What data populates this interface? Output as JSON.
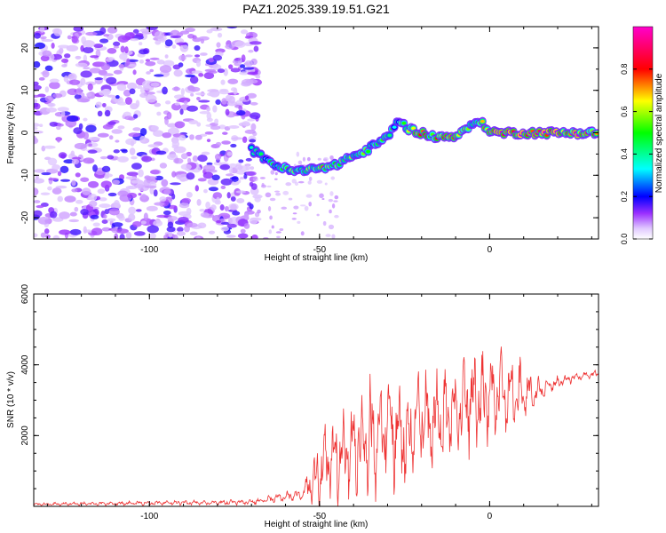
{
  "title": "PAZ1.2025.339.19.51.G21",
  "chart_data": [
    {
      "type": "heatmap",
      "xlabel": "Height of straight line (km)",
      "ylabel": "Frequency (Hz)",
      "xlim": [
        -134,
        32
      ],
      "ylim": [
        -25,
        25
      ],
      "xticks": [
        -100,
        -50,
        0
      ],
      "xtick_labels": [
        "-100",
        "-50",
        "0"
      ],
      "yticks": [
        20,
        10,
        0,
        -10,
        -20
      ],
      "ytick_labels": [
        "20",
        "10",
        "0",
        "-10",
        "-20"
      ],
      "colorbar": {
        "label": "Normalized spectral amplitude",
        "range": [
          0,
          1
        ],
        "ticks": [
          0.0,
          0.2,
          0.4,
          0.6,
          0.8
        ],
        "tick_labels": [
          "0.0",
          "0.2",
          "0.4",
          "0.6",
          "0.8"
        ]
      },
      "noise_region": {
        "x_range": [
          -134,
          -68
        ],
        "y_range": [
          -25,
          25
        ],
        "level": 0.1
      },
      "ridge": {
        "x": [
          -70,
          -66,
          -62,
          -58,
          -54,
          -50,
          -46,
          -42,
          -38,
          -34,
          -30,
          -27,
          -24,
          -20,
          -16,
          -12,
          -8,
          -5,
          -3,
          -1,
          2,
          6,
          10,
          14,
          18,
          22,
          26,
          30,
          32
        ],
        "frequency": [
          -4,
          -6,
          -8,
          -9,
          -9,
          -8,
          -8,
          -6,
          -5,
          -3,
          -1,
          3,
          1,
          0,
          -1,
          -1,
          0,
          2,
          3,
          1,
          0,
          0,
          0,
          0,
          0,
          0,
          0,
          0,
          0
        ],
        "amplitude": [
          0.35,
          0.45,
          0.5,
          0.55,
          0.6,
          0.65,
          0.6,
          0.55,
          0.55,
          0.5,
          0.5,
          0.45,
          0.6,
          0.7,
          0.75,
          0.8,
          0.7,
          0.6,
          0.6,
          0.75,
          0.9,
          0.95,
          0.9,
          0.85,
          0.9,
          0.9,
          0.85,
          0.8,
          0.75
        ]
      }
    },
    {
      "type": "line",
      "xlabel": "Height of straight line (km)",
      "ylabel": "SNR (10 * v/v)",
      "xlim": [
        -134,
        32
      ],
      "ylim": [
        0,
        6000
      ],
      "xticks": [
        -100,
        -50,
        0
      ],
      "xtick_labels": [
        "-100",
        "-50",
        "0"
      ],
      "yticks": [
        2000,
        4000,
        6000
      ],
      "ytick_labels": [
        "2000",
        "4000",
        "6000"
      ],
      "color": "#ee3333",
      "envelope": {
        "x": [
          -134,
          -70,
          -55,
          -50,
          -45,
          -40,
          -35,
          -30,
          -25,
          -20,
          -15,
          -10,
          -5,
          0,
          5,
          10,
          15,
          20,
          25,
          32
        ],
        "center": [
          60,
          120,
          350,
          1000,
          1400,
          1700,
          2000,
          2200,
          2000,
          2400,
          2500,
          2800,
          3000,
          3100,
          3100,
          3100,
          3300,
          3500,
          3650,
          3750
        ],
        "amplitude": [
          40,
          70,
          150,
          900,
          1200,
          1300,
          1500,
          1500,
          1500,
          1400,
          1300,
          1200,
          1400,
          1200,
          1100,
          900,
          300,
          150,
          120,
          100
        ]
      }
    }
  ]
}
